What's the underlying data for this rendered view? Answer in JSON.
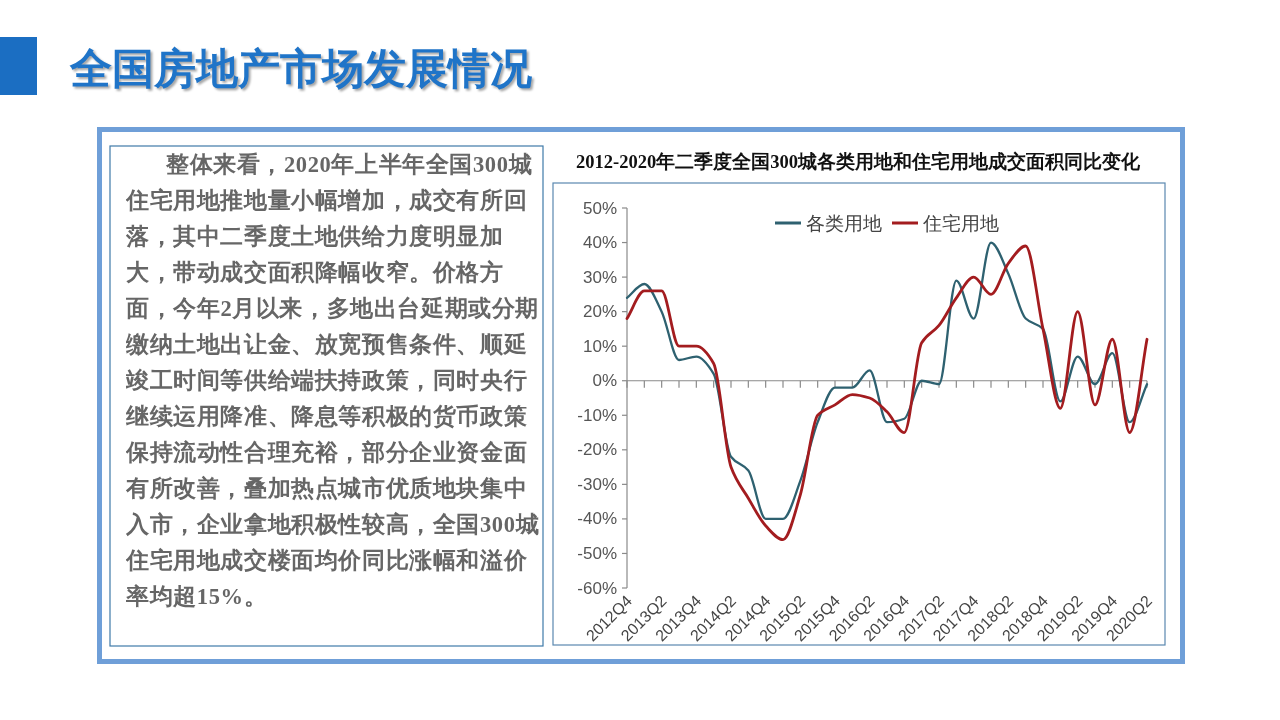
{
  "chart_data": [
    {
      "type": "other",
      "title": "全国房地产市场发展情况",
      "annotations": [
        "整体来看，2020年上半年全国300城住宅用地推地量小幅增加，成交有所回落，其中二季度土地供给力度明显加大，带动成交面积降幅收窄。价格方面，今年2月以来，多地出台延期或分期缴纳土地出让金、放宽预售条件、顺延竣工时间等供给端扶持政策，同时央行继续运用降准、降息等积极的货币政策保持流动性合理充裕，部分企业资金面有所改善，叠加热点城市优质地块集中入市，企业拿地积极性较高，全国300城住宅用地成交楼面均价同比涨幅和溢价率均超15%。"
      ]
    },
    {
      "type": "line",
      "title": "2012-2020年二季度全国300城各类用地和住宅用地成交面积同比变化",
      "categories": [
        "2012Q4",
        null,
        "2013Q2",
        null,
        "2013Q4",
        null,
        "2014Q2",
        null,
        "2014Q4",
        null,
        "2015Q2",
        null,
        "2015Q4",
        null,
        "2016Q2",
        null,
        "2016Q4",
        null,
        "2017Q2",
        null,
        "2017Q4",
        null,
        "2018Q2",
        null,
        "2018Q4",
        null,
        "2019Q2",
        null,
        "2019Q4",
        null,
        "2020Q2"
      ],
      "series": [
        {
          "name": "各类用地",
          "color": "#2e6170",
          "values": [
            24,
            28,
            20,
            6,
            7,
            2,
            -22,
            -26,
            -40,
            -40,
            -29,
            -12,
            -2,
            -2,
            3,
            -12,
            -11,
            0,
            -1,
            29,
            18,
            40,
            31,
            18,
            15,
            -6,
            7,
            -1,
            8,
            -12,
            -1
          ]
        },
        {
          "name": "住宅用地",
          "color": "#a31c1f",
          "values": [
            18,
            26,
            26,
            10,
            10,
            5,
            -25,
            -34,
            -42,
            -46,
            -33,
            -10,
            -7,
            -4,
            -5,
            -9,
            -15,
            11,
            16,
            24,
            30,
            25,
            34,
            39,
            15,
            -8,
            20,
            -7,
            12,
            -15,
            12
          ]
        }
      ],
      "ylim": [
        -60,
        50
      ],
      "yticks": [
        {
          "value": 50,
          "label": "50%"
        },
        {
          "value": 40,
          "label": "40%"
        },
        {
          "value": 30,
          "label": "30%"
        },
        {
          "value": 20,
          "label": "20%"
        },
        {
          "value": 10,
          "label": "10%"
        },
        {
          "value": 0,
          "label": "0%"
        },
        {
          "value": -10,
          "label": "-10%"
        },
        {
          "value": -20,
          "label": "-20%"
        },
        {
          "value": -30,
          "label": "-30%"
        },
        {
          "value": -40,
          "label": "-40%"
        },
        {
          "value": -50,
          "label": "-50%"
        },
        {
          "value": -60,
          "label": "-60%"
        }
      ],
      "legend": "top"
    }
  ]
}
